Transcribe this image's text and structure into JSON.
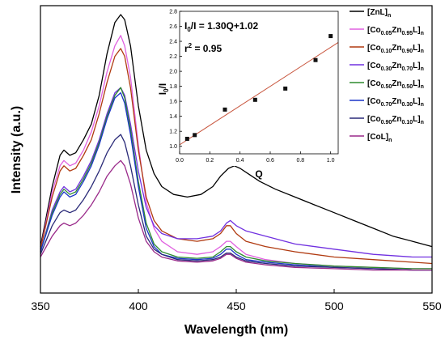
{
  "chart_data": [
    {
      "type": "line",
      "xlabel": "Wavelength (nm)",
      "ylabel": "Intensity (a.u.)",
      "xlim": [
        350,
        550
      ],
      "xticks": [
        350,
        400,
        450,
        500,
        550
      ],
      "ylim": [
        0,
        1
      ],
      "grid": false,
      "legend_position": "top-right",
      "series": [
        {
          "name": "[ZnL]n",
          "legend": {
            "pre": "[ZnL]",
            "sub": "n",
            "parts": []
          },
          "color": "#000000",
          "x": [
            350,
            356,
            360,
            362,
            365,
            368,
            372,
            376,
            380,
            384,
            388,
            391,
            393,
            396,
            400,
            404,
            408,
            412,
            418,
            425,
            432,
            438,
            442,
            446,
            449,
            452,
            456,
            462,
            470,
            480,
            490,
            500,
            510,
            520,
            530,
            540,
            550
          ],
          "y": [
            0.11,
            0.34,
            0.46,
            0.48,
            0.46,
            0.47,
            0.52,
            0.58,
            0.69,
            0.85,
            0.97,
            1.0,
            0.98,
            0.88,
            0.65,
            0.48,
            0.39,
            0.34,
            0.31,
            0.3,
            0.31,
            0.34,
            0.38,
            0.41,
            0.42,
            0.41,
            0.39,
            0.36,
            0.33,
            0.3,
            0.27,
            0.24,
            0.21,
            0.18,
            0.15,
            0.13,
            0.11
          ]
        },
        {
          "name": "[Co0.05Zn0.95L]n",
          "legend": {
            "pre": "[Co",
            "sub": "n",
            "parts": [
              {
                "sub": "0.05",
                "t": "Zn"
              },
              {
                "sub": "0.95",
                "t": "L]"
              }
            ]
          },
          "color": "#e060e0",
          "x": [
            350,
            356,
            360,
            362,
            365,
            368,
            372,
            376,
            380,
            384,
            388,
            391,
            393,
            396,
            400,
            404,
            408,
            412,
            420,
            430,
            438,
            442,
            445,
            447,
            450,
            455,
            465,
            480,
            500,
            520,
            540,
            550
          ],
          "y": [
            0.1,
            0.32,
            0.42,
            0.44,
            0.42,
            0.43,
            0.48,
            0.55,
            0.65,
            0.78,
            0.88,
            0.92,
            0.88,
            0.76,
            0.5,
            0.28,
            0.18,
            0.13,
            0.09,
            0.08,
            0.09,
            0.11,
            0.13,
            0.13,
            0.11,
            0.08,
            0.06,
            0.045,
            0.035,
            0.03,
            0.025,
            0.025
          ]
        },
        {
          "name": "[Co0.10Zn0.90L]n",
          "legend": {
            "pre": "[Co",
            "sub": "n",
            "parts": [
              {
                "sub": "0.10",
                "t": "Zn"
              },
              {
                "sub": "0.90",
                "t": "L]"
              }
            ]
          },
          "color": "#b03a10",
          "x": [
            350,
            356,
            360,
            362,
            365,
            368,
            372,
            376,
            380,
            384,
            388,
            391,
            393,
            396,
            400,
            404,
            408,
            412,
            420,
            430,
            438,
            442,
            445,
            447,
            450,
            455,
            465,
            480,
            500,
            520,
            540,
            550
          ],
          "y": [
            0.1,
            0.3,
            0.4,
            0.42,
            0.4,
            0.41,
            0.46,
            0.52,
            0.62,
            0.74,
            0.84,
            0.87,
            0.84,
            0.72,
            0.48,
            0.3,
            0.21,
            0.17,
            0.14,
            0.13,
            0.14,
            0.16,
            0.19,
            0.19,
            0.16,
            0.13,
            0.11,
            0.09,
            0.07,
            0.06,
            0.05,
            0.045
          ]
        },
        {
          "name": "[Co0.30Zn0.70L]n",
          "legend": {
            "pre": "[Co",
            "sub": "n",
            "parts": [
              {
                "sub": "0.30",
                "t": "Zn"
              },
              {
                "sub": "0.70",
                "t": "L]"
              }
            ]
          },
          "color": "#7030e0",
          "x": [
            350,
            356,
            360,
            362,
            365,
            368,
            372,
            376,
            380,
            384,
            388,
            391,
            393,
            396,
            400,
            404,
            408,
            412,
            420,
            430,
            438,
            442,
            445,
            447,
            450,
            455,
            465,
            480,
            500,
            520,
            540,
            550
          ],
          "y": [
            0.09,
            0.25,
            0.32,
            0.34,
            0.32,
            0.33,
            0.38,
            0.44,
            0.52,
            0.62,
            0.7,
            0.72,
            0.69,
            0.58,
            0.4,
            0.26,
            0.19,
            0.16,
            0.14,
            0.14,
            0.15,
            0.17,
            0.2,
            0.21,
            0.19,
            0.17,
            0.15,
            0.12,
            0.1,
            0.08,
            0.07,
            0.07
          ]
        },
        {
          "name": "[Co0.50Zn0.50L]n",
          "legend": {
            "pre": "[Co",
            "sub": "n",
            "parts": [
              {
                "sub": "0.50",
                "t": "Zn"
              },
              {
                "sub": "0.50",
                "t": "L]"
              }
            ]
          },
          "color": "#2e8b2e",
          "x": [
            350,
            356,
            360,
            362,
            365,
            368,
            372,
            376,
            380,
            384,
            388,
            391,
            393,
            396,
            400,
            404,
            408,
            412,
            420,
            430,
            438,
            442,
            445,
            447,
            450,
            455,
            465,
            480,
            500,
            520,
            540,
            550
          ],
          "y": [
            0.09,
            0.24,
            0.31,
            0.33,
            0.31,
            0.32,
            0.37,
            0.43,
            0.51,
            0.61,
            0.69,
            0.72,
            0.68,
            0.56,
            0.36,
            0.2,
            0.12,
            0.09,
            0.07,
            0.065,
            0.07,
            0.09,
            0.11,
            0.11,
            0.09,
            0.07,
            0.055,
            0.045,
            0.035,
            0.03,
            0.025,
            0.025
          ]
        },
        {
          "name": "[Co0.70Zn0.30L]n",
          "legend": {
            "pre": "[Co",
            "sub": "n",
            "parts": [
              {
                "sub": "0.70",
                "t": "Zn"
              },
              {
                "sub": "0.30",
                "t": "L]"
              }
            ]
          },
          "color": "#1c35c8",
          "x": [
            350,
            356,
            360,
            362,
            365,
            368,
            372,
            376,
            380,
            384,
            388,
            391,
            393,
            396,
            400,
            404,
            408,
            412,
            420,
            430,
            438,
            442,
            445,
            447,
            450,
            455,
            465,
            480,
            500,
            520,
            540,
            550
          ],
          "y": [
            0.09,
            0.23,
            0.3,
            0.32,
            0.3,
            0.31,
            0.36,
            0.42,
            0.5,
            0.6,
            0.68,
            0.7,
            0.66,
            0.54,
            0.34,
            0.18,
            0.11,
            0.08,
            0.065,
            0.06,
            0.065,
            0.08,
            0.1,
            0.1,
            0.08,
            0.06,
            0.05,
            0.04,
            0.03,
            0.025,
            0.02,
            0.02
          ]
        },
        {
          "name": "[Co0.90Zn0.10L]n",
          "legend": {
            "pre": "[Co",
            "sub": "n",
            "parts": [
              {
                "sub": "0.90",
                "t": "Zn"
              },
              {
                "sub": "0.10",
                "t": "L]"
              }
            ]
          },
          "color": "#2a2a78",
          "x": [
            350,
            356,
            360,
            362,
            365,
            368,
            372,
            376,
            380,
            384,
            388,
            391,
            393,
            396,
            400,
            404,
            408,
            412,
            420,
            430,
            438,
            442,
            445,
            447,
            450,
            455,
            465,
            480,
            500,
            520,
            540,
            550
          ],
          "y": [
            0.08,
            0.19,
            0.24,
            0.25,
            0.24,
            0.25,
            0.29,
            0.34,
            0.4,
            0.47,
            0.52,
            0.54,
            0.51,
            0.42,
            0.27,
            0.15,
            0.1,
            0.08,
            0.06,
            0.055,
            0.06,
            0.07,
            0.085,
            0.085,
            0.07,
            0.055,
            0.045,
            0.035,
            0.03,
            0.025,
            0.02,
            0.02
          ]
        },
        {
          "name": "[CoL]n",
          "legend": {
            "pre": "[CoL]",
            "sub": "n",
            "parts": []
          },
          "color": "#9a2a8a",
          "x": [
            350,
            356,
            360,
            362,
            365,
            368,
            372,
            376,
            380,
            384,
            388,
            391,
            393,
            396,
            400,
            404,
            408,
            412,
            420,
            430,
            438,
            442,
            445,
            447,
            450,
            455,
            465,
            480,
            500,
            520,
            540,
            550
          ],
          "y": [
            0.07,
            0.15,
            0.19,
            0.2,
            0.19,
            0.2,
            0.23,
            0.27,
            0.32,
            0.38,
            0.42,
            0.44,
            0.42,
            0.35,
            0.22,
            0.13,
            0.09,
            0.07,
            0.055,
            0.05,
            0.055,
            0.065,
            0.08,
            0.08,
            0.065,
            0.05,
            0.04,
            0.03,
            0.025,
            0.02,
            0.02,
            0.02
          ]
        }
      ]
    },
    {
      "type": "scatter",
      "xlabel": "Q",
      "ylabel": "I0/I",
      "xlim": [
        0.0,
        1.05
      ],
      "ylim": [
        0.9,
        2.8
      ],
      "xticks": [
        0.0,
        0.2,
        0.4,
        0.6,
        0.8,
        1.0
      ],
      "yticks": [
        1.0,
        1.2,
        1.4,
        1.6,
        1.8,
        2.0,
        2.2,
        2.4,
        2.6,
        2.8
      ],
      "grid": false,
      "points": {
        "x": [
          0.05,
          0.1,
          0.3,
          0.5,
          0.7,
          0.9,
          1.0
        ],
        "y": [
          1.1,
          1.15,
          1.49,
          1.62,
          1.77,
          2.15,
          2.47
        ]
      },
      "fit": {
        "slope": 1.3,
        "intercept": 1.02,
        "x_range": [
          0.0,
          1.05
        ],
        "color": "#c8553d"
      },
      "annotations": [
        "I0/I = 1.30Q+1.02",
        "r2 = 0.95"
      ]
    }
  ]
}
